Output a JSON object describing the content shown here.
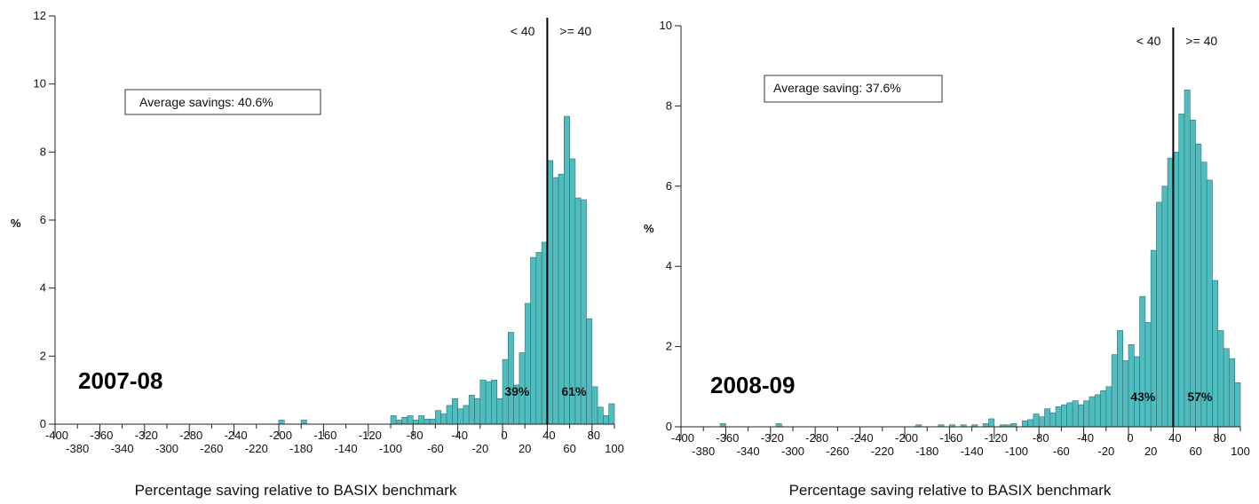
{
  "chart_data": [
    {
      "type": "bar",
      "panel_label": "2007-08",
      "xlabel": "Percentage saving relative to BASIX benchmark",
      "ylabel": "%",
      "xlim": [
        -400,
        100
      ],
      "ylim": [
        0,
        12
      ],
      "yticks": [
        "0",
        "2",
        "4",
        "6",
        "8",
        "10",
        "12"
      ],
      "xticks_upper": [
        "-400",
        "-360",
        "-320",
        "-280",
        "-240",
        "-200",
        "-160",
        "-120",
        "-80",
        "-40",
        "0",
        "40",
        "80"
      ],
      "xticks_lower": [
        "-380",
        "-340",
        "-300",
        "-260",
        "-220",
        "-180",
        "-140",
        "-100",
        "-60",
        "-20",
        "20",
        "60",
        "100"
      ],
      "threshold": 40,
      "threshold_left_label": "< 40",
      "threshold_right_label": ">= 40",
      "share_below_label": "39%",
      "share_above_label": "61%",
      "annotation": "Average savings: 40.6%",
      "bin_width": 5,
      "bins": [
        {
          "x": -200,
          "y": 0.12
        },
        {
          "x": -180,
          "y": 0.12
        },
        {
          "x": -100,
          "y": 0.25
        },
        {
          "x": -95,
          "y": 0.12
        },
        {
          "x": -90,
          "y": 0.2
        },
        {
          "x": -85,
          "y": 0.25
        },
        {
          "x": -80,
          "y": 0.12
        },
        {
          "x": -75,
          "y": 0.25
        },
        {
          "x": -70,
          "y": 0.15
        },
        {
          "x": -65,
          "y": 0.15
        },
        {
          "x": -60,
          "y": 0.4
        },
        {
          "x": -55,
          "y": 0.3
        },
        {
          "x": -50,
          "y": 0.55
        },
        {
          "x": -45,
          "y": 0.75
        },
        {
          "x": -40,
          "y": 0.45
        },
        {
          "x": -35,
          "y": 0.55
        },
        {
          "x": -30,
          "y": 0.85
        },
        {
          "x": -25,
          "y": 0.75
        },
        {
          "x": -20,
          "y": 1.3
        },
        {
          "x": -15,
          "y": 1.25
        },
        {
          "x": -10,
          "y": 1.3
        },
        {
          "x": -5,
          "y": 0.75
        },
        {
          "x": 0,
          "y": 1.9
        },
        {
          "x": 5,
          "y": 2.7
        },
        {
          "x": 10,
          "y": 1.15
        },
        {
          "x": 15,
          "y": 2.1
        },
        {
          "x": 20,
          "y": 3.55
        },
        {
          "x": 25,
          "y": 4.9
        },
        {
          "x": 30,
          "y": 5.05
        },
        {
          "x": 35,
          "y": 5.35
        },
        {
          "x": 40,
          "y": 7.75
        },
        {
          "x": 45,
          "y": 7.25
        },
        {
          "x": 50,
          "y": 7.35
        },
        {
          "x": 55,
          "y": 9.05
        },
        {
          "x": 60,
          "y": 7.8
        },
        {
          "x": 65,
          "y": 6.65
        },
        {
          "x": 70,
          "y": 6.6
        },
        {
          "x": 75,
          "y": 3.1
        },
        {
          "x": 80,
          "y": 1.1
        },
        {
          "x": 85,
          "y": 0.5
        },
        {
          "x": 90,
          "y": 0.25
        },
        {
          "x": 95,
          "y": 0.6
        }
      ]
    },
    {
      "type": "bar",
      "panel_label": "2008-09",
      "xlabel": "Percentage saving relative to BASIX benchmark",
      "ylabel": "%",
      "xlim": [
        -400,
        100
      ],
      "ylim": [
        0,
        10
      ],
      "yticks": [
        "0",
        "2",
        "4",
        "6",
        "8",
        "10"
      ],
      "xticks_upper": [
        "-400",
        "-360",
        "-320",
        "-280",
        "-240",
        "-200",
        "-160",
        "-120",
        "-80",
        "-40",
        "0",
        "40",
        "80"
      ],
      "xticks_lower": [
        "-380",
        "-340",
        "-300",
        "-260",
        "-220",
        "-180",
        "-140",
        "-100",
        "-60",
        "-20",
        "20",
        "60",
        "100"
      ],
      "threshold": 40,
      "threshold_left_label": "< 40",
      "threshold_right_label": ">= 40",
      "share_below_label": "43%",
      "share_above_label": "57%",
      "annotation": "Average saving: 37.6%",
      "bin_width": 5,
      "bins": [
        {
          "x": -365,
          "y": 0.08
        },
        {
          "x": -315,
          "y": 0.08
        },
        {
          "x": -190,
          "y": 0.05
        },
        {
          "x": -170,
          "y": 0.05
        },
        {
          "x": -160,
          "y": 0.05
        },
        {
          "x": -150,
          "y": 0.05
        },
        {
          "x": -140,
          "y": 0.05
        },
        {
          "x": -130,
          "y": 0.08
        },
        {
          "x": -125,
          "y": 0.2
        },
        {
          "x": -115,
          "y": 0.05
        },
        {
          "x": -110,
          "y": 0.05
        },
        {
          "x": -105,
          "y": 0.08
        },
        {
          "x": -95,
          "y": 0.15
        },
        {
          "x": -90,
          "y": 0.18
        },
        {
          "x": -85,
          "y": 0.32
        },
        {
          "x": -80,
          "y": 0.25
        },
        {
          "x": -75,
          "y": 0.45
        },
        {
          "x": -70,
          "y": 0.35
        },
        {
          "x": -65,
          "y": 0.5
        },
        {
          "x": -60,
          "y": 0.55
        },
        {
          "x": -55,
          "y": 0.6
        },
        {
          "x": -50,
          "y": 0.65
        },
        {
          "x": -45,
          "y": 0.55
        },
        {
          "x": -40,
          "y": 0.65
        },
        {
          "x": -35,
          "y": 0.75
        },
        {
          "x": -30,
          "y": 0.8
        },
        {
          "x": -25,
          "y": 0.9
        },
        {
          "x": -20,
          "y": 1.0
        },
        {
          "x": -15,
          "y": 1.8
        },
        {
          "x": -10,
          "y": 2.4
        },
        {
          "x": -5,
          "y": 1.65
        },
        {
          "x": 0,
          "y": 2.05
        },
        {
          "x": 5,
          "y": 1.75
        },
        {
          "x": 10,
          "y": 3.25
        },
        {
          "x": 15,
          "y": 2.6
        },
        {
          "x": 20,
          "y": 4.4
        },
        {
          "x": 25,
          "y": 5.6
        },
        {
          "x": 30,
          "y": 6.0
        },
        {
          "x": 35,
          "y": 6.7
        },
        {
          "x": 40,
          "y": 6.85
        },
        {
          "x": 45,
          "y": 7.8
        },
        {
          "x": 50,
          "y": 8.4
        },
        {
          "x": 55,
          "y": 7.65
        },
        {
          "x": 60,
          "y": 7.05
        },
        {
          "x": 65,
          "y": 6.6
        },
        {
          "x": 70,
          "y": 6.15
        },
        {
          "x": 75,
          "y": 3.65
        },
        {
          "x": 80,
          "y": 2.4
        },
        {
          "x": 85,
          "y": 1.95
        },
        {
          "x": 90,
          "y": 1.7
        },
        {
          "x": 95,
          "y": 1.1
        }
      ]
    }
  ]
}
